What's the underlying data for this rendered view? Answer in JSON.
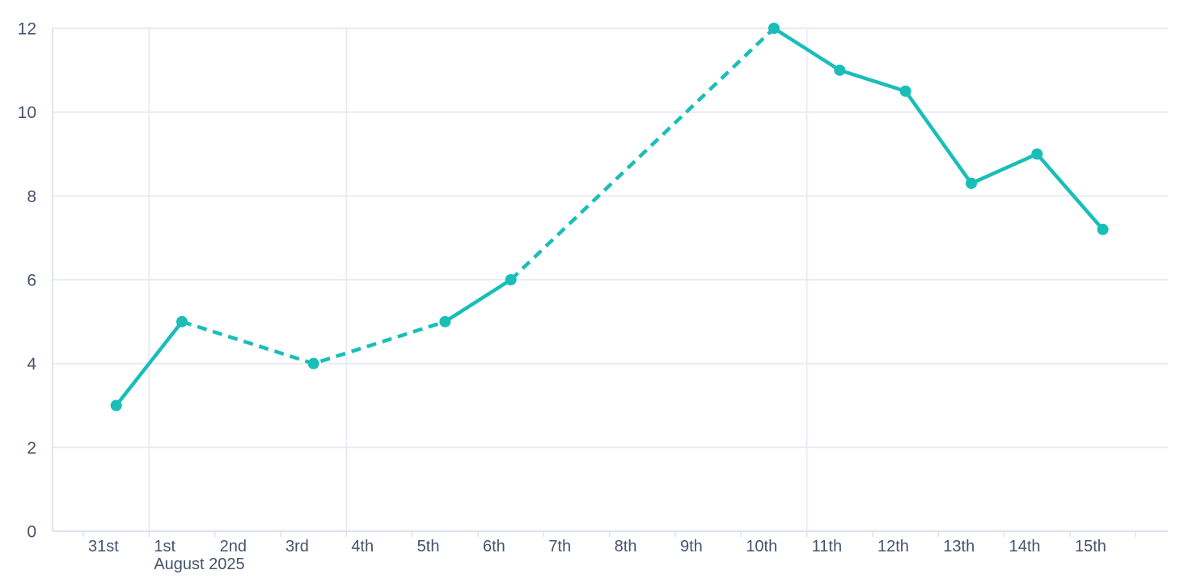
{
  "chart_data": {
    "type": "line",
    "title": "",
    "x_axis": {
      "categories": [
        "31st",
        "1st",
        "2nd",
        "3rd",
        "4th",
        "5th",
        "6th",
        "7th",
        "8th",
        "9th",
        "10th",
        "11th",
        "12th",
        "13th",
        "14th",
        "15th"
      ],
      "secondary_label": "August 2025",
      "secondary_label_anchor": "1st"
    },
    "y_axis": {
      "min": 0,
      "max": 12,
      "ticks": [
        0,
        2,
        4,
        6,
        8,
        10,
        12
      ],
      "tick_labels": [
        "0",
        "2",
        "4",
        "6",
        "8",
        "10",
        "12"
      ]
    },
    "grid": {
      "horizontal_at": [
        0,
        2,
        4,
        6,
        8,
        10,
        12
      ],
      "vertical_at_category_start": [
        "1st",
        "4th",
        "11th"
      ]
    },
    "legend": "none",
    "series": [
      {
        "name": "daily-value",
        "color": "#19BEB8",
        "points": [
          {
            "day": "31st",
            "value": 3
          },
          {
            "day": "1st",
            "value": 5
          },
          {
            "day": "3rd",
            "value": 4
          },
          {
            "day": "5th",
            "value": 5
          },
          {
            "day": "6th",
            "value": 6
          },
          {
            "day": "10th",
            "value": 12
          },
          {
            "day": "11th",
            "value": 11
          },
          {
            "day": "12th",
            "value": 10.5
          },
          {
            "day": "13th",
            "value": 8.3
          },
          {
            "day": "14th",
            "value": 9
          },
          {
            "day": "15th",
            "value": 7.2
          }
        ],
        "segments": [
          {
            "style": "solid",
            "days": [
              "31st",
              "1st"
            ]
          },
          {
            "style": "dashed",
            "days": [
              "1st",
              "3rd",
              "5th"
            ]
          },
          {
            "style": "solid",
            "days": [
              "5th",
              "6th"
            ]
          },
          {
            "style": "dashed",
            "days": [
              "6th",
              "10th"
            ]
          },
          {
            "style": "solid",
            "days": [
              "10th",
              "11th",
              "12th",
              "13th",
              "14th",
              "15th"
            ]
          }
        ]
      }
    ],
    "colors": {
      "line": "#19BEB8",
      "grid": "#E7EAF3",
      "axis": "#DCE1EC",
      "label": "#46536B",
      "background": "#FFFFFF"
    }
  }
}
